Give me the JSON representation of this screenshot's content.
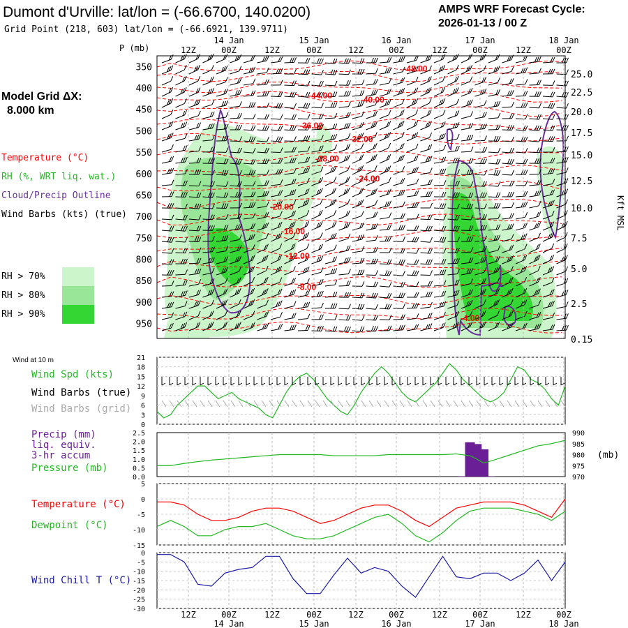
{
  "header": {
    "title": "Dumont d'Urville:  lat/lon = (-66.6700, 140.0200)",
    "subtitle": "Grid Point (218, 603) lat/lon = (-66.6921, 139.9711)",
    "cycle_line1": "AMPS WRF Forecast Cycle:",
    "cycle_line2": "2026-01-13 / 00  Z"
  },
  "top_axis": {
    "hour_ticks": [
      "12Z",
      "00Z",
      "12Z",
      "00Z",
      "12Z",
      "00Z",
      "12Z",
      "00Z",
      "12Z",
      "00Z"
    ],
    "date_labels": [
      "14 Jan",
      "15 Jan",
      "16 Jan",
      "17 Jan",
      "18 Jan"
    ],
    "p_label": "P (mb)"
  },
  "left_panel": {
    "grid_line1": "Model Grid ΔX:",
    "grid_line2": "8.000 km",
    "legend_temp": "Temperature (°C)",
    "legend_rh": "RH (%, WRT liq. wat.)",
    "legend_cloud": "Cloud/Precip Outline",
    "legend_wind": "Wind Barbs (kts) (true)",
    "rh70": "RH > 70%",
    "rh80": "RH > 80%",
    "rh90": "RH > 90%"
  },
  "colors": {
    "temperature": "#ff0000",
    "cloud_outline": "#6a2f9e",
    "rh70": "#ccf5cc",
    "rh80": "#99e699",
    "rh90": "#33d633",
    "wind_speed": "#22b822",
    "wind_grid": "#aaaaaa",
    "precip": "#6a1f96",
    "wind_chill": "#1a1aa6"
  },
  "panels": {
    "wind10m_label": "Wind at 10 m",
    "wind_spd_label": "Wind Spd (kts)",
    "wind_barbs_true_label": "Wind Barbs (true)",
    "wind_barbs_grid_label": "Wind Barbs (grid)",
    "precip_label1": "Precip (mm)",
    "precip_label2": "liq. equiv.",
    "precip_label3": "3-hr accum",
    "pressure_label": "Pressure (mb)",
    "pressure_unit": "(mb)",
    "temp_label": "Temperature (°C)",
    "dew_label": "Dewpoint (°C)",
    "wc_label": "Wind Chill T (°C)"
  },
  "chart_data": [
    {
      "type": "line",
      "panel": "vertical_cross_section",
      "x_hours": [
        0,
        180
      ],
      "pressure_levels": [
        350,
        400,
        450,
        500,
        550,
        600,
        650,
        700,
        750,
        800,
        850,
        900,
        950
      ],
      "height_kft": [
        "25.0",
        "22.5",
        "20.0",
        "17.5",
        "15.0",
        "12.5",
        "10.0",
        "7.5",
        "5.0",
        "2.5",
        "0.15"
      ],
      "height_axis_label": "Kft MSL",
      "temperature_labels": [
        {
          "text": "-48.00",
          "t": 114,
          "p": 355
        },
        {
          "text": "-44.00",
          "t": 72,
          "p": 418
        },
        {
          "text": "-40.00",
          "t": 95,
          "p": 428
        },
        {
          "text": "-36.00",
          "t": 68,
          "p": 488
        },
        {
          "text": "-32.00",
          "t": 90,
          "p": 520
        },
        {
          "text": "-28.00",
          "t": 75,
          "p": 565
        },
        {
          "text": "-24.00",
          "t": 93,
          "p": 612
        },
        {
          "text": "-20.00",
          "t": 55,
          "p": 678
        },
        {
          "text": "-16.00",
          "t": 60,
          "p": 735
        },
        {
          "text": "-12.00",
          "t": 62,
          "p": 793
        },
        {
          "text": "-8.00",
          "t": 66,
          "p": 865
        },
        {
          "text": "-4.00",
          "t": 138,
          "p": 938
        }
      ]
    },
    {
      "type": "line",
      "panel": "wind_speed_10m",
      "ylim": [
        0,
        21
      ],
      "yticks": [
        0,
        3,
        6,
        9,
        12,
        15,
        18,
        21
      ],
      "x_hours": [
        0,
        3,
        6,
        9,
        12,
        15,
        18,
        21,
        24,
        27,
        30,
        33,
        36,
        39,
        42,
        45,
        48,
        51,
        54,
        57,
        60,
        63,
        66,
        69,
        72,
        75,
        78,
        81,
        84,
        87,
        90,
        93,
        96,
        99,
        102,
        105,
        108,
        111,
        114,
        117,
        120,
        123,
        126,
        129,
        132,
        135,
        138,
        141,
        144,
        147,
        150,
        153,
        156,
        159,
        162,
        165,
        168,
        171,
        174,
        177,
        180
      ],
      "series": [
        {
          "values": [
            4,
            2,
            3,
            6,
            8,
            10,
            12,
            12,
            10,
            8,
            9,
            10,
            8,
            7,
            6,
            5,
            3,
            2,
            6,
            10,
            13,
            15,
            16,
            14,
            11,
            8,
            6,
            4,
            3,
            6,
            10,
            13,
            16,
            18,
            16,
            13,
            10,
            8,
            7,
            9,
            11,
            13,
            16,
            19,
            17,
            14,
            12,
            10,
            8,
            7,
            8,
            10,
            14,
            18,
            17,
            14,
            13,
            11,
            8,
            6,
            12
          ]
        }
      ]
    },
    {
      "type": "line",
      "panel": "precip_pressure",
      "precip_ylim": [
        0,
        2.5
      ],
      "precip_yticks": [
        "0.0",
        "0.5",
        "1.0",
        "1.5",
        "2.0",
        "2.5"
      ],
      "pressure_ylim": [
        970,
        990
      ],
      "pressure_yticks": [
        970,
        975,
        980,
        985,
        990
      ],
      "precip_bars": [
        {
          "t": 135,
          "value": 0.02
        },
        {
          "t": 138,
          "value": 1.95
        },
        {
          "t": 141,
          "value": 1.85
        },
        {
          "t": 144,
          "value": 1.55
        },
        {
          "t": 147,
          "value": 0.02
        }
      ],
      "series": [
        {
          "values": [
            [
              0,
              975.0
            ],
            [
              6,
              975.0
            ],
            [
              12,
              976.0
            ],
            [
              18,
              976.8
            ],
            [
              24,
              977.5
            ],
            [
              30,
              978.0
            ],
            [
              36,
              978.5
            ],
            [
              42,
              979.0
            ],
            [
              48,
              979.5
            ],
            [
              54,
              980.0
            ],
            [
              60,
              980.0
            ],
            [
              66,
              980.0
            ],
            [
              72,
              980.0
            ],
            [
              78,
              979.5
            ],
            [
              84,
              979.5
            ],
            [
              90,
              979.5
            ],
            [
              96,
              979.5
            ],
            [
              102,
              980.0
            ],
            [
              108,
              980.0
            ],
            [
              114,
              980.0
            ],
            [
              120,
              980.0
            ],
            [
              126,
              980.0
            ],
            [
              132,
              980.3
            ],
            [
              138,
              979.5
            ],
            [
              141,
              978.0
            ],
            [
              144,
              976.2
            ],
            [
              147,
              977.0
            ],
            [
              150,
              978.0
            ],
            [
              156,
              980.0
            ],
            [
              162,
              982.0
            ],
            [
              168,
              984.0
            ],
            [
              174,
              985.0
            ],
            [
              180,
              986.5
            ]
          ]
        }
      ]
    },
    {
      "type": "line",
      "panel": "temperature_dewpoint",
      "ylim": [
        -15,
        5
      ],
      "yticks": [
        "5",
        "0",
        "-5",
        "-10",
        "-15"
      ],
      "x_hours": [
        0,
        6,
        12,
        18,
        24,
        30,
        36,
        42,
        48,
        54,
        60,
        66,
        72,
        78,
        84,
        90,
        96,
        102,
        108,
        114,
        120,
        126,
        132,
        138,
        144,
        150,
        156,
        162,
        168,
        174,
        180
      ],
      "series": [
        {
          "values": [
            -1,
            -1,
            -2,
            -5,
            -7,
            -7,
            -6,
            -4,
            -3,
            -3,
            -4,
            -6,
            -8,
            -7,
            -5,
            -3,
            -2,
            -2,
            -4,
            -7,
            -9,
            -6,
            -3,
            -2,
            -1,
            -1,
            -1,
            -2,
            -4,
            -6,
            0
          ]
        },
        {
          "values": [
            -9,
            -7,
            -9,
            -12,
            -12,
            -10,
            -9,
            -9,
            -8,
            -10,
            -12,
            -13,
            -13,
            -12,
            -10,
            -8,
            -6,
            -5,
            -8,
            -12,
            -14,
            -11,
            -7,
            -4,
            -3,
            -3,
            -3,
            -4,
            -5,
            -7,
            -4
          ]
        }
      ]
    },
    {
      "type": "line",
      "panel": "wind_chill",
      "ylim": [
        -30,
        0
      ],
      "yticks": [
        "0",
        "-5",
        "-10",
        "-15",
        "-20",
        "-25",
        "-30"
      ],
      "x_hours": [
        0,
        6,
        12,
        18,
        24,
        30,
        36,
        42,
        48,
        54,
        60,
        66,
        72,
        78,
        84,
        90,
        96,
        102,
        108,
        114,
        120,
        126,
        132,
        138,
        144,
        150,
        156,
        162,
        168,
        174,
        180
      ],
      "series": [
        {
          "values": [
            -1,
            -1,
            -5,
            -17,
            -18,
            -11,
            -9,
            -8,
            -2,
            -2,
            -14,
            -22,
            -22,
            -12,
            -3,
            -11,
            -8,
            -10,
            -18,
            -24,
            -13,
            -2,
            -13,
            -14,
            -11,
            -11,
            -15,
            -11,
            -4,
            -15,
            -5
          ]
        }
      ]
    }
  ]
}
